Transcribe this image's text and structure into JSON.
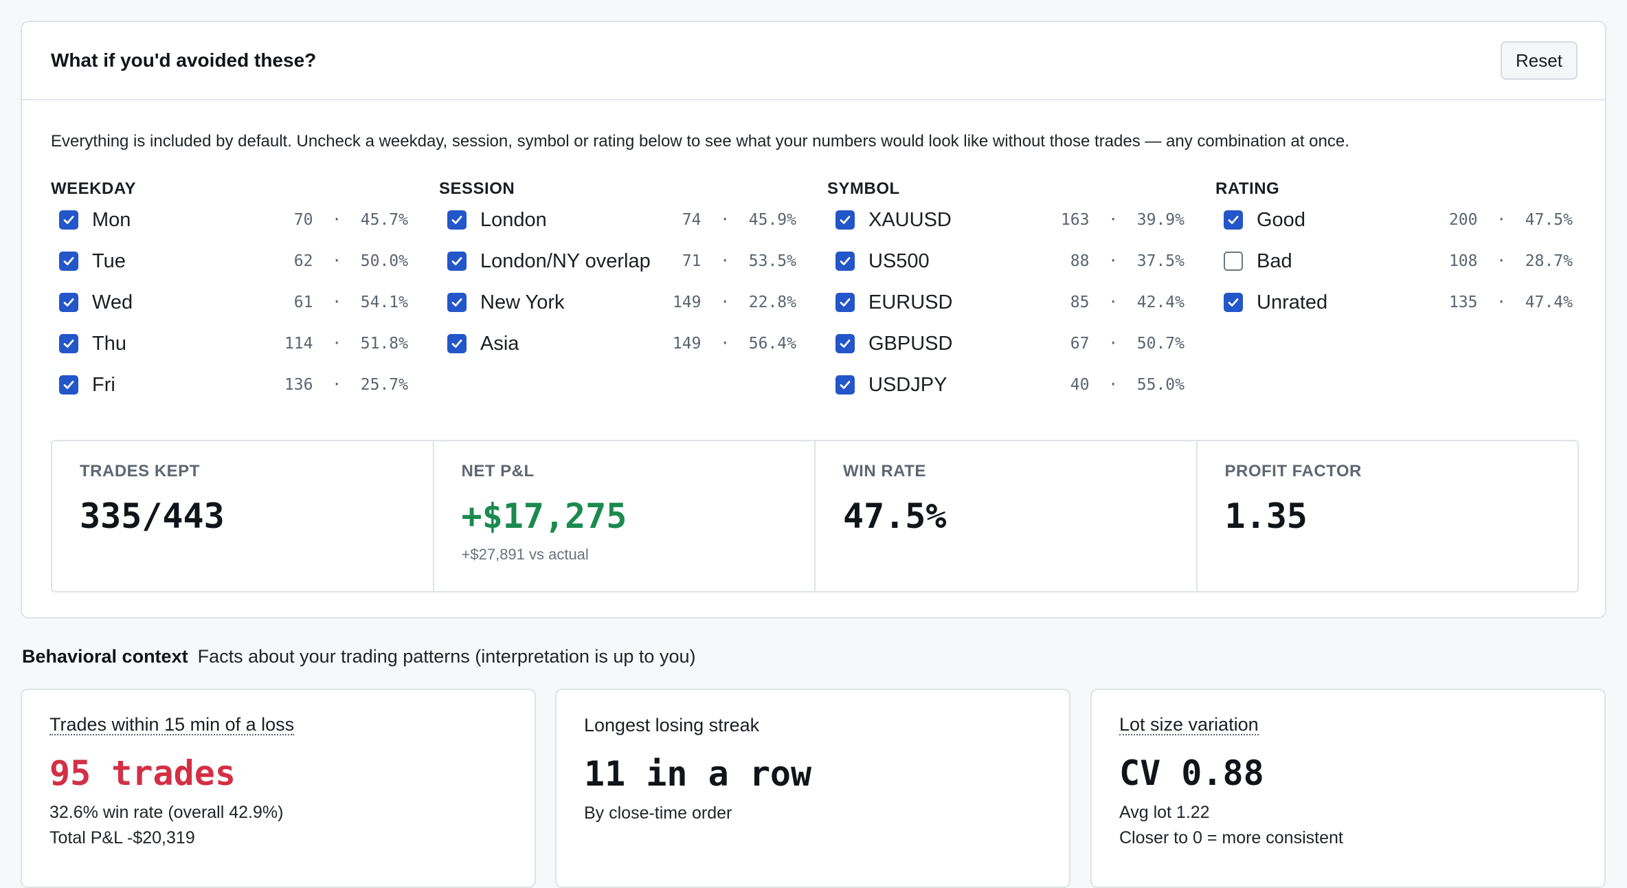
{
  "whatif": {
    "title": "What if you'd avoided these?",
    "reset_label": "Reset",
    "intro": "Everything is included by default. Uncheck a weekday, session, symbol or rating below to see what your numbers would look like without those trades — any combination at once.",
    "groups": [
      {
        "title": "WEEKDAY",
        "items": [
          {
            "label": "Mon",
            "count": "70",
            "rate": "45.7%",
            "checked": true
          },
          {
            "label": "Tue",
            "count": "62",
            "rate": "50.0%",
            "checked": true
          },
          {
            "label": "Wed",
            "count": "61",
            "rate": "54.1%",
            "checked": true
          },
          {
            "label": "Thu",
            "count": "114",
            "rate": "51.8%",
            "checked": true
          },
          {
            "label": "Fri",
            "count": "136",
            "rate": "25.7%",
            "checked": true
          }
        ]
      },
      {
        "title": "SESSION",
        "items": [
          {
            "label": "London",
            "count": "74",
            "rate": "45.9%",
            "checked": true
          },
          {
            "label": "London/NY overlap",
            "count": "71",
            "rate": "53.5%",
            "checked": true
          },
          {
            "label": "New York",
            "count": "149",
            "rate": "22.8%",
            "checked": true
          },
          {
            "label": "Asia",
            "count": "149",
            "rate": "56.4%",
            "checked": true
          }
        ]
      },
      {
        "title": "SYMBOL",
        "items": [
          {
            "label": "XAUUSD",
            "count": "163",
            "rate": "39.9%",
            "checked": true
          },
          {
            "label": "US500",
            "count": "88",
            "rate": "37.5%",
            "checked": true
          },
          {
            "label": "EURUSD",
            "count": "85",
            "rate": "42.4%",
            "checked": true
          },
          {
            "label": "GBPUSD",
            "count": "67",
            "rate": "50.7%",
            "checked": true
          },
          {
            "label": "USDJPY",
            "count": "40",
            "rate": "55.0%",
            "checked": true
          }
        ]
      },
      {
        "title": "RATING",
        "items": [
          {
            "label": "Good",
            "count": "200",
            "rate": "47.5%",
            "checked": true
          },
          {
            "label": "Bad",
            "count": "108",
            "rate": "28.7%",
            "checked": false
          },
          {
            "label": "Unrated",
            "count": "135",
            "rate": "47.4%",
            "checked": true
          }
        ]
      }
    ],
    "metrics": [
      {
        "label": "TRADES KEPT",
        "value": "335/443",
        "sub": "",
        "color": "#111418"
      },
      {
        "label": "NET P&L",
        "value": "+$17,275",
        "sub": "+$27,891 vs actual",
        "color": "#1b8a4e"
      },
      {
        "label": "WIN RATE",
        "value": "47.5%",
        "sub": "",
        "color": "#111418"
      },
      {
        "label": "PROFIT FACTOR",
        "value": "1.35",
        "sub": "",
        "color": "#111418"
      }
    ]
  },
  "behavioral": {
    "title": "Behavioral context",
    "subtitle": "Facts about your trading patterns (interpretation is up to you)",
    "cards": [
      {
        "title": "Trades within 15 min of a loss",
        "value": "95 trades",
        "lines": [
          "32.6% win rate (overall 42.9%)",
          "Total P&L -$20,319"
        ],
        "accent": "#d32f45"
      },
      {
        "title": "Longest losing streak",
        "value": "11 in a row",
        "lines": [
          "By close-time order"
        ],
        "accent": "#111418"
      },
      {
        "title": "Lot size variation",
        "value": "CV 0.88",
        "lines": [
          "Avg lot 1.22",
          "Closer to 0 = more consistent"
        ],
        "accent": "#111418"
      }
    ]
  },
  "colors": {
    "checkbox": "#2356c8",
    "positive": "#1b8a4e",
    "negative": "#d32f45"
  },
  "icons": {
    "checkbox_checked": "checkmark-icon"
  }
}
